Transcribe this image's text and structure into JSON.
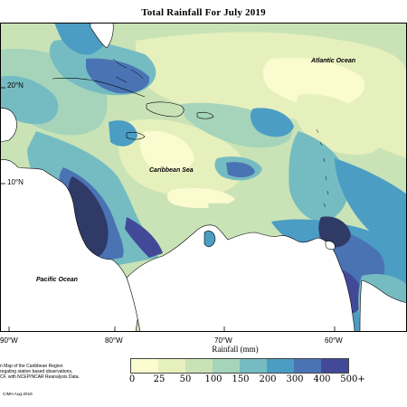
{
  "title": "Total Rainfall For July 2019",
  "map": {
    "labels": {
      "atlantic": "Atlantic Ocean",
      "caribbean": "Caribbean Sea",
      "pacific": "Pacific Ocean"
    },
    "lon_ticks": [
      "90°W",
      "80°W",
      "70°W",
      "60°W"
    ],
    "lat_ticks": [
      "20°N",
      "10°N"
    ],
    "colors": {
      "land": "#ffffff",
      "c0": "#fbfbd0",
      "c25": "#e6f0bd",
      "c50": "#c9e3b6",
      "c100": "#a5d4ba",
      "c150": "#75bcc2",
      "c200": "#4b9dc4",
      "c300": "#4a73b4",
      "c400": "#424a98",
      "c500": "#2f3a66"
    }
  },
  "legend": {
    "title": "Rainfall (mm)",
    "ticks": [
      "0",
      "25",
      "50",
      "100",
      "150",
      "200",
      "300",
      "400",
      "500+"
    ],
    "colors": [
      "#fbfbd0",
      "#e6f0bd",
      "#c9e3b6",
      "#a5d4ba",
      "#75bcc2",
      "#4b9dc4",
      "#4a73b4",
      "#424a98",
      "#2f3a66"
    ]
  },
  "footnote": {
    "line1": "n Map of the Caribbean Region",
    "line2": "regating station based observations,",
    "line3": "CF, with NCEP/NCAR Reanalysis Data."
  },
  "credit": "CIMH Aug-2019"
}
